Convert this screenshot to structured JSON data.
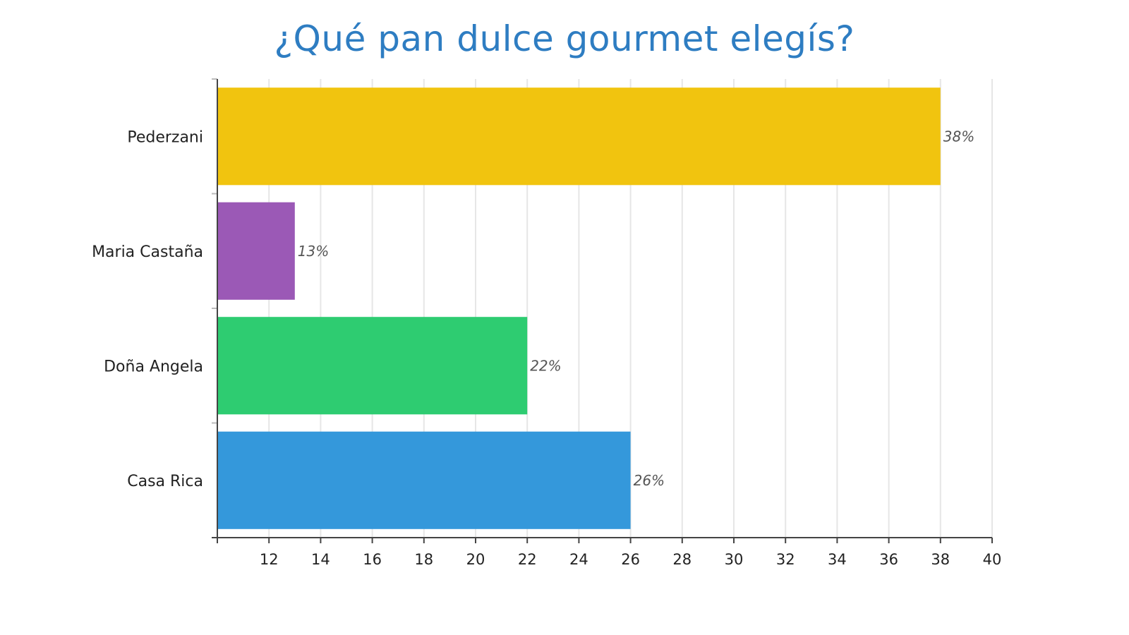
{
  "chart_data": {
    "type": "bar",
    "orientation": "horizontal",
    "title": "¿Qué pan dulce gourmet elegís?",
    "xlabel": "",
    "ylabel": "",
    "categories": [
      "Pederzani",
      "Maria Castaña",
      "Doña Angela",
      "Casa Rica"
    ],
    "values": [
      38,
      13,
      22,
      26
    ],
    "data_labels": [
      "38%",
      "13%",
      "22%",
      "26%"
    ],
    "colors": [
      "#f1c40f",
      "#9b59b6",
      "#2ecc71",
      "#3498db"
    ],
    "xlim": [
      10,
      40
    ],
    "x_ticks": [
      12,
      14,
      16,
      18,
      20,
      22,
      24,
      26,
      28,
      30,
      32,
      34,
      36,
      38,
      40
    ],
    "grid": true,
    "legend": "none"
  }
}
